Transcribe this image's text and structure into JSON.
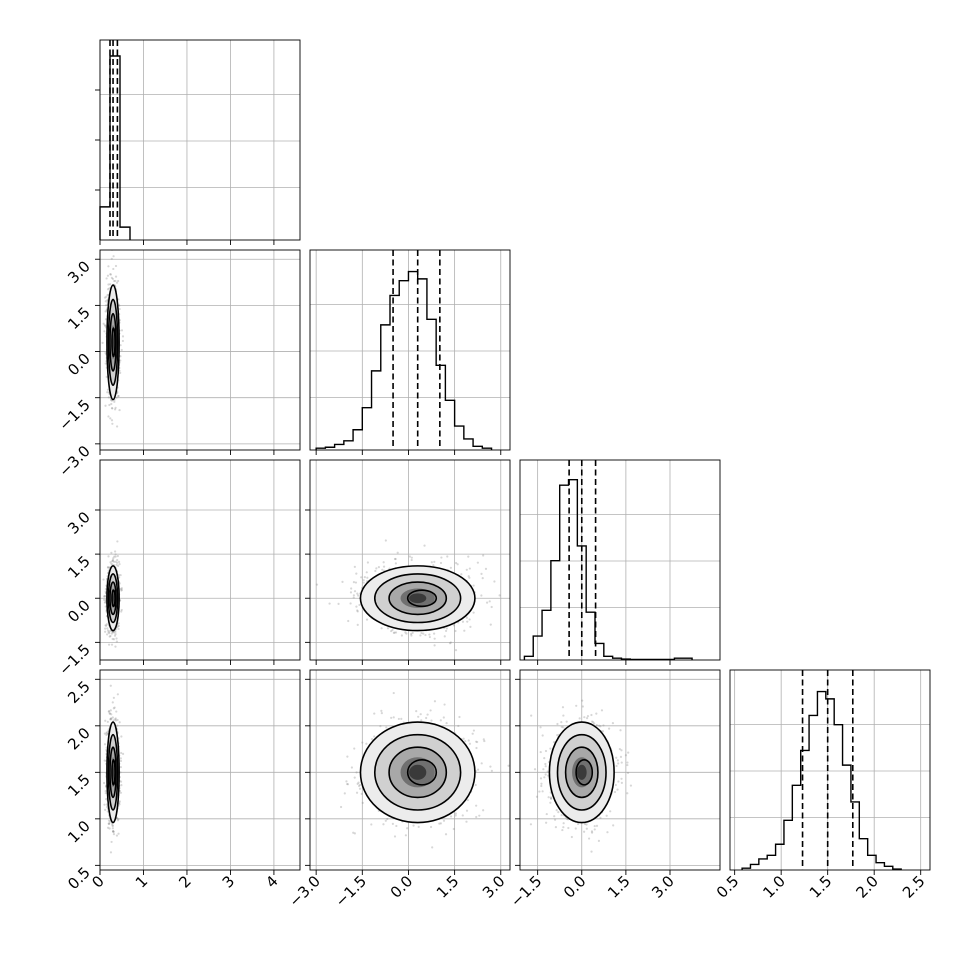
{
  "chart_data": {
    "type": "corner",
    "grid": true,
    "colors": {
      "points": "#8c8c8c",
      "lines": "#000000",
      "grid": "#b0b0b0"
    },
    "parameters": [
      {
        "index": 0,
        "range": [
          0,
          4.6
        ],
        "ticks": [
          0,
          1,
          2,
          3,
          4
        ],
        "tick_labels": [
          "0",
          "1",
          "2",
          "3",
          "4"
        ]
      },
      {
        "index": 1,
        "range": [
          -3.2,
          3.3
        ],
        "ticks": [
          -3.0,
          -1.5,
          0.0,
          1.5,
          3.0
        ],
        "tick_labels": [
          "−3.0",
          "−1.5",
          "0.0",
          "1.5",
          "3.0"
        ]
      },
      {
        "index": 2,
        "range": [
          -2.1,
          4.7
        ],
        "ticks": [
          -1.5,
          0.0,
          1.5,
          3.0
        ],
        "tick_labels": [
          "−1.5",
          "0.0",
          "1.5",
          "3.0"
        ]
      },
      {
        "index": 3,
        "range": [
          0.45,
          2.6
        ],
        "ticks": [
          0.5,
          1.0,
          1.5,
          2.0,
          2.5
        ],
        "tick_labels": [
          "0.5",
          "1.0",
          "1.5",
          "2.0",
          "2.5"
        ]
      }
    ],
    "marginals": [
      {
        "param": 0,
        "bins": [
          0,
          0.23,
          0.46,
          0.69
        ],
        "counts": [
          0.18,
          1.0,
          0.07
        ],
        "quantiles": [
          0.23,
          0.3,
          0.4
        ]
      },
      {
        "param": 1,
        "bin_start": -3.0,
        "bin_width": 0.3,
        "counts": [
          0.01,
          0.015,
          0.03,
          0.05,
          0.11,
          0.23,
          0.43,
          0.68,
          0.84,
          0.92,
          0.97,
          0.93,
          0.71,
          0.46,
          0.27,
          0.13,
          0.06,
          0.02,
          0.01
        ],
        "quantiles": [
          -0.5,
          0.3,
          1.02
        ]
      },
      {
        "param": 2,
        "bin_start": -1.95,
        "bin_width": 0.3,
        "counts": [
          0.02,
          0.13,
          0.27,
          0.54,
          0.95,
          0.98,
          0.62,
          0.26,
          0.09,
          0.02,
          0.01,
          0.005,
          0.003,
          0.003,
          0.003,
          0.003,
          0.003,
          0.01,
          0.01
        ],
        "quantiles": [
          -0.43,
          0.0,
          0.47
        ]
      },
      {
        "param": 3,
        "bin_start": 0.58,
        "bin_width": 0.09,
        "counts": [
          0.01,
          0.03,
          0.06,
          0.08,
          0.14,
          0.27,
          0.46,
          0.65,
          0.84,
          0.97,
          0.93,
          0.79,
          0.57,
          0.37,
          0.17,
          0.08,
          0.04,
          0.02,
          0.005
        ],
        "quantiles": [
          1.23,
          1.5,
          1.77
        ]
      }
    ],
    "joints": [
      {
        "x": 0,
        "y": 1,
        "mean": [
          0.3,
          0.3
        ],
        "sd": [
          0.07,
          0.93
        ]
      },
      {
        "x": 0,
        "y": 2,
        "mean": [
          0.3,
          0.0
        ],
        "sd": [
          0.07,
          0.55
        ]
      },
      {
        "x": 0,
        "y": 3,
        "mean": [
          0.3,
          1.5
        ],
        "sd": [
          0.07,
          0.27
        ]
      },
      {
        "x": 1,
        "y": 2,
        "mean": [
          0.3,
          0.0
        ],
        "sd": [
          0.93,
          0.55
        ]
      },
      {
        "x": 1,
        "y": 3,
        "mean": [
          0.3,
          1.5
        ],
        "sd": [
          0.93,
          0.27
        ]
      },
      {
        "x": 2,
        "y": 3,
        "mean": [
          0.0,
          1.5
        ],
        "sd": [
          0.55,
          0.27
        ]
      }
    ]
  }
}
